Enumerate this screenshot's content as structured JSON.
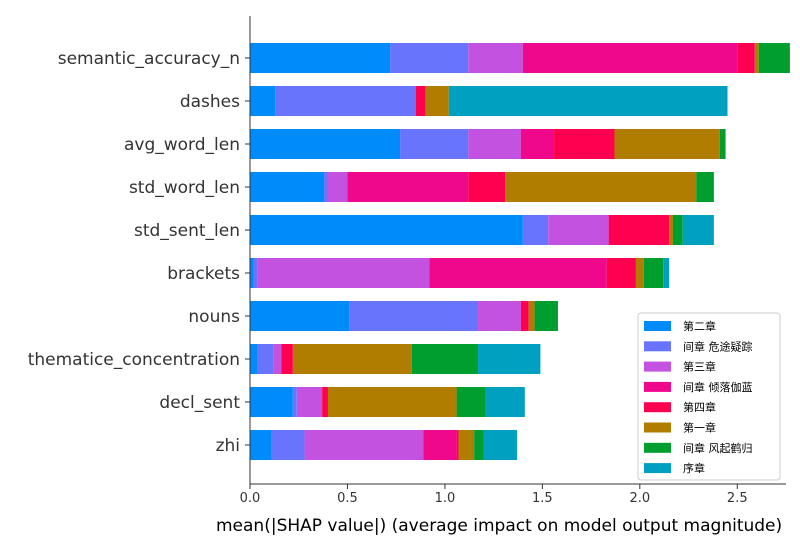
{
  "chart_data": {
    "type": "bar",
    "orientation": "horizontal",
    "stacked": true,
    "xlabel": "mean(|SHAP value|) (average impact on model output magnitude)",
    "ylabel": "",
    "title": "",
    "xlim": [
      0,
      2.75
    ],
    "xticks": [
      0.0,
      0.5,
      1.0,
      1.5,
      2.0,
      2.5
    ],
    "xtick_labels": [
      "0.0",
      "0.5",
      "1.0",
      "1.5",
      "2.0",
      "2.5"
    ],
    "grid": false,
    "legend_position": "lower-right",
    "categories": [
      "semantic_accuracy_n",
      "dashes",
      "avg_word_len",
      "std_word_len",
      "std_sent_len",
      "brackets",
      "nouns",
      "thematice_concentration",
      "decl_sent",
      "zhi"
    ],
    "series": [
      {
        "name": "第二章",
        "color": "#008bfb",
        "values": [
          0.72,
          0.13,
          0.77,
          0.38,
          1.4,
          0.02,
          0.51,
          0.04,
          0.22,
          0.11
        ]
      },
      {
        "name": "间章 危途疑踪",
        "color": "#6874fb",
        "values": [
          0.4,
          0.72,
          0.35,
          0.02,
          0.13,
          0.02,
          0.66,
          0.08,
          0.02,
          0.17
        ]
      },
      {
        "name": "第三章",
        "color": "#c452e0",
        "values": [
          0.28,
          0.0,
          0.27,
          0.1,
          0.31,
          0.88,
          0.22,
          0.04,
          0.13,
          0.61
        ]
      },
      {
        "name": "间章 倾落伽蓝",
        "color": "#f0088c",
        "values": [
          1.1,
          0.0,
          0.17,
          0.62,
          0.0,
          0.91,
          0.0,
          0.0,
          0.0,
          0.17
        ]
      },
      {
        "name": "第四章",
        "color": "#ff0051",
        "values": [
          0.09,
          0.05,
          0.31,
          0.19,
          0.31,
          0.15,
          0.04,
          0.06,
          0.03,
          0.01
        ]
      },
      {
        "name": "第一章",
        "color": "#b07d00",
        "values": [
          0.02,
          0.12,
          0.54,
          0.98,
          0.02,
          0.04,
          0.03,
          0.61,
          0.66,
          0.08
        ]
      },
      {
        "name": "间章 风起鹤归",
        "color": "#009e2e",
        "values": [
          0.16,
          0.0,
          0.03,
          0.09,
          0.05,
          0.1,
          0.12,
          0.34,
          0.15,
          0.05
        ]
      },
      {
        "name": "序章",
        "color": "#00a0c0",
        "values": [
          0.0,
          1.43,
          0.0,
          0.0,
          0.16,
          0.03,
          0.0,
          0.32,
          0.2,
          0.17
        ]
      }
    ]
  }
}
